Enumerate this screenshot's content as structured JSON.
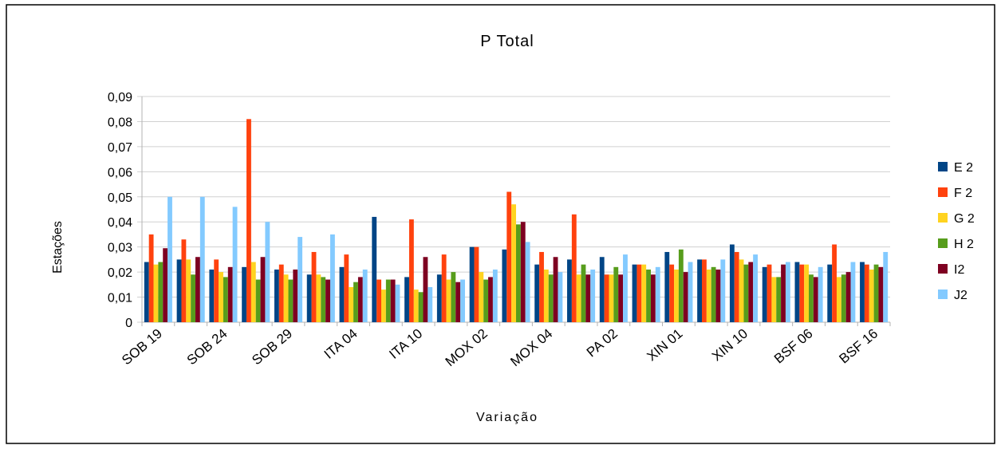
{
  "chart_data": {
    "type": "bar",
    "title": "P Total",
    "x_label": "Variação",
    "y_label": "Estações",
    "categories": [
      "SOB 19",
      null,
      "SOB 24",
      null,
      "SOB 29",
      null,
      "ITA 04",
      null,
      "ITA 10",
      null,
      "MOX 02",
      null,
      "MOX 04",
      null,
      "PA 02",
      null,
      "XIN 01",
      null,
      "XIN 10",
      null,
      "BSF 06",
      null,
      "BSF 16"
    ],
    "series": [
      {
        "name": "E 2",
        "color": "#004586",
        "values": [
          0.024,
          0.025,
          0.021,
          0.022,
          0.021,
          0.019,
          0.022,
          0.042,
          0.018,
          0.019,
          0.03,
          0.029,
          0.023,
          0.025,
          0.026,
          0.023,
          0.028,
          0.025,
          0.031,
          0.022,
          0.024,
          0.023,
          0.024
        ]
      },
      {
        "name": "F 2",
        "color": "#ff420e",
        "values": [
          0.035,
          0.033,
          0.025,
          0.081,
          0.023,
          0.028,
          0.027,
          0.017,
          0.041,
          0.027,
          0.03,
          0.052,
          0.028,
          0.043,
          0.019,
          0.023,
          0.023,
          0.025,
          0.028,
          0.023,
          0.023,
          0.031,
          0.023
        ]
      },
      {
        "name": "G 2",
        "color": "#ffd320",
        "values": [
          0.023,
          0.025,
          0.02,
          0.024,
          0.019,
          0.019,
          0.014,
          0.013,
          0.013,
          0.017,
          0.02,
          0.047,
          0.021,
          0.019,
          0.019,
          0.023,
          0.021,
          0.021,
          0.025,
          0.018,
          0.023,
          0.018,
          0.021
        ]
      },
      {
        "name": "H 2",
        "color": "#579d1c",
        "values": [
          0.024,
          0.019,
          0.018,
          0.017,
          0.017,
          0.018,
          0.016,
          0.017,
          0.012,
          0.02,
          0.017,
          0.039,
          0.019,
          0.023,
          0.022,
          0.021,
          0.029,
          0.022,
          0.023,
          0.018,
          0.019,
          0.019,
          0.023
        ]
      },
      {
        "name": "I2",
        "color": "#7e0021",
        "values": [
          0.0295,
          0.026,
          0.022,
          0.026,
          0.021,
          0.017,
          0.018,
          0.017,
          0.026,
          0.016,
          0.018,
          0.04,
          0.026,
          0.019,
          0.019,
          0.019,
          0.02,
          0.021,
          0.024,
          0.023,
          0.018,
          0.02,
          0.022
        ]
      },
      {
        "name": "J2",
        "color": "#83caff",
        "values": [
          0.05,
          0.05,
          0.046,
          0.04,
          0.034,
          0.035,
          0.021,
          0.015,
          0.014,
          0.017,
          0.021,
          0.032,
          0.02,
          0.021,
          0.027,
          0.022,
          0.024,
          0.025,
          0.027,
          0.024,
          0.022,
          0.024,
          0.028
        ]
      }
    ],
    "ylim": [
      0,
      0.09
    ],
    "yticks": [
      0,
      {
        "value": 0.01,
        "label": "0,01"
      },
      {
        "value": 0.02,
        "label": "0,02"
      },
      {
        "value": 0.03,
        "label": "0,03"
      },
      {
        "value": 0.04,
        "label": "0,04"
      },
      {
        "value": 0.05,
        "label": "0,05"
      },
      {
        "value": 0.06,
        "label": "0,06"
      },
      {
        "value": 0.07,
        "label": "0,07"
      },
      {
        "value": 0.08,
        "label": "0,08"
      },
      {
        "value": 0.09,
        "label": "0,09"
      }
    ],
    "grid": true,
    "legend": "right"
  }
}
